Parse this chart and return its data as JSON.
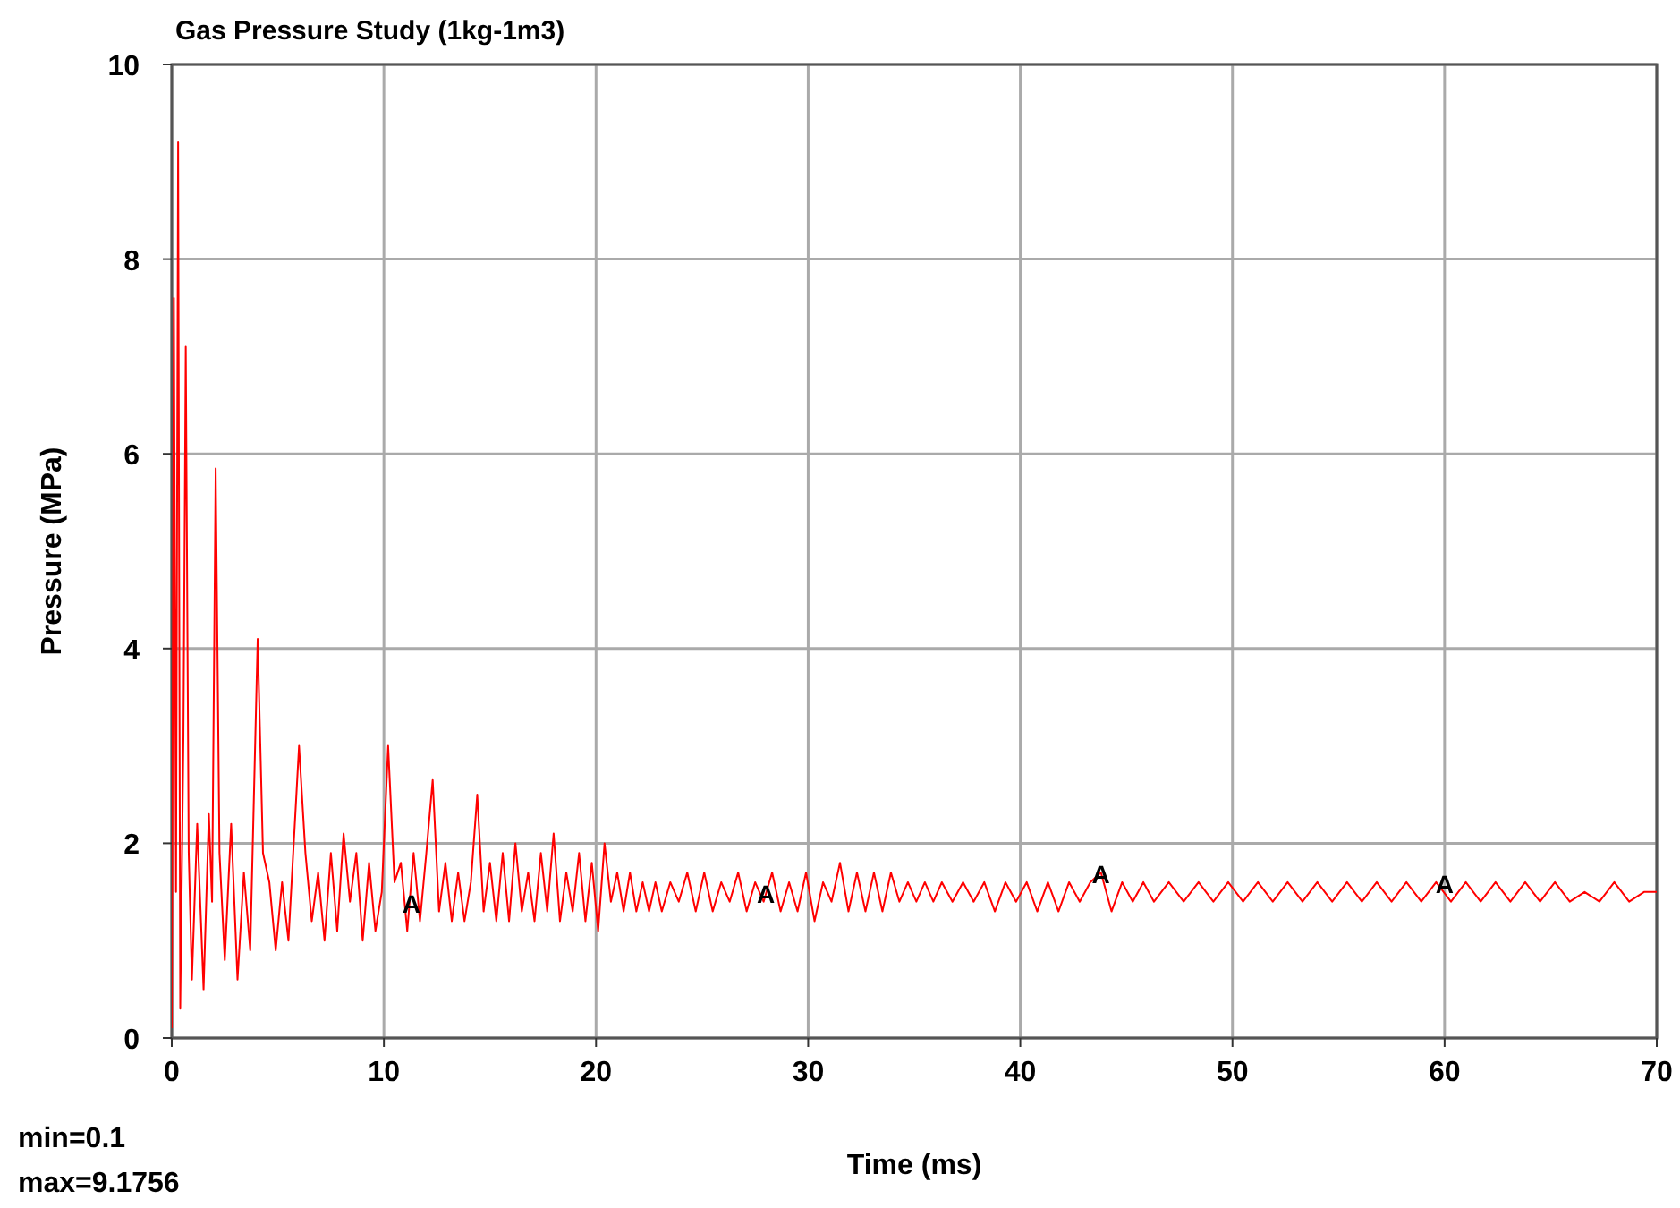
{
  "chart_data": {
    "type": "line",
    "title": "Gas Pressure Study (1kg-1m3)",
    "xlabel": "Time (ms)",
    "ylabel": "Pressure (MPa)",
    "xlim": [
      0,
      70
    ],
    "xticks": [
      0,
      10,
      20,
      30,
      40,
      50,
      60,
      70
    ],
    "ylim": [
      0,
      10
    ],
    "yticks": [
      0,
      2,
      4,
      6,
      8,
      10
    ],
    "grid": true,
    "marker": "none",
    "line_style": "solid",
    "annotations": [
      {
        "text": "A",
        "x": 11.3,
        "y": 1.4
      },
      {
        "text": "A",
        "x": 28,
        "y": 1.5
      },
      {
        "text": "A",
        "x": 43.8,
        "y": 1.7
      },
      {
        "text": "A",
        "x": 60,
        "y": 1.6
      },
      "min=0.1",
      "max=9.1756"
    ],
    "series": [
      {
        "color": "#ff0000",
        "x": [
          0,
          0.1,
          0.2,
          0.3,
          0.4,
          0.55,
          0.66,
          0.8,
          0.95,
          1.2,
          1.5,
          1.75,
          1.9,
          2.07,
          2.25,
          2.5,
          2.8,
          3.1,
          3.4,
          3.7,
          4.05,
          4.3,
          4.6,
          4.9,
          5.2,
          5.5,
          6.0,
          6.3,
          6.6,
          6.9,
          7.2,
          7.5,
          7.8,
          8.1,
          8.4,
          8.7,
          9.0,
          9.3,
          9.6,
          9.9,
          10.2,
          10.5,
          10.8,
          11.1,
          11.4,
          11.7,
          12.0,
          12.3,
          12.6,
          12.9,
          13.2,
          13.5,
          13.8,
          14.1,
          14.4,
          14.7,
          15.0,
          15.3,
          15.6,
          15.9,
          16.2,
          16.5,
          16.8,
          17.1,
          17.4,
          17.7,
          18.0,
          18.3,
          18.6,
          18.9,
          19.2,
          19.5,
          19.8,
          20.1,
          20.4,
          20.7,
          21.0,
          21.3,
          21.6,
          21.9,
          22.2,
          22.5,
          22.8,
          23.1,
          23.5,
          23.9,
          24.3,
          24.7,
          25.1,
          25.5,
          25.9,
          26.3,
          26.7,
          27.1,
          27.5,
          27.9,
          28.3,
          28.7,
          29.1,
          29.5,
          29.9,
          30.3,
          30.7,
          31.1,
          31.5,
          31.9,
          32.3,
          32.7,
          33.1,
          33.5,
          33.9,
          34.3,
          34.7,
          35.1,
          35.5,
          35.9,
          36.3,
          36.8,
          37.3,
          37.8,
          38.3,
          38.8,
          39.3,
          39.8,
          40.3,
          40.8,
          41.3,
          41.8,
          42.3,
          42.8,
          43.3,
          43.8,
          44.3,
          44.8,
          45.3,
          45.8,
          46.3,
          47,
          47.7,
          48.4,
          49.1,
          49.8,
          50.5,
          51.2,
          51.9,
          52.6,
          53.3,
          54,
          54.7,
          55.4,
          56.1,
          56.8,
          57.5,
          58.2,
          58.9,
          59.6,
          60.3,
          61,
          61.7,
          62.4,
          63.1,
          63.8,
          64.5,
          65.2,
          65.9,
          66.6,
          67.3,
          68,
          68.7,
          69.4,
          70
        ],
        "values": [
          0.1,
          7.6,
          1.5,
          9.2,
          0.3,
          3.1,
          7.1,
          1.9,
          0.6,
          2.2,
          0.5,
          2.3,
          1.4,
          5.85,
          1.9,
          0.8,
          2.2,
          0.6,
          1.7,
          0.9,
          4.1,
          1.9,
          1.6,
          0.9,
          1.6,
          1.0,
          3.0,
          1.9,
          1.2,
          1.7,
          1.0,
          1.9,
          1.1,
          2.1,
          1.4,
          1.9,
          1.0,
          1.8,
          1.1,
          1.5,
          3.0,
          1.6,
          1.8,
          1.1,
          1.9,
          1.2,
          1.9,
          2.65,
          1.3,
          1.8,
          1.2,
          1.7,
          1.2,
          1.6,
          2.5,
          1.3,
          1.8,
          1.2,
          1.9,
          1.2,
          2.0,
          1.3,
          1.7,
          1.2,
          1.9,
          1.3,
          2.1,
          1.2,
          1.7,
          1.3,
          1.9,
          1.2,
          1.8,
          1.1,
          2.0,
          1.4,
          1.7,
          1.3,
          1.7,
          1.3,
          1.6,
          1.3,
          1.6,
          1.3,
          1.6,
          1.4,
          1.7,
          1.3,
          1.7,
          1.3,
          1.6,
          1.4,
          1.7,
          1.3,
          1.6,
          1.4,
          1.7,
          1.3,
          1.6,
          1.3,
          1.7,
          1.2,
          1.6,
          1.4,
          1.8,
          1.3,
          1.7,
          1.3,
          1.7,
          1.3,
          1.7,
          1.4,
          1.6,
          1.4,
          1.6,
          1.4,
          1.6,
          1.4,
          1.6,
          1.4,
          1.6,
          1.3,
          1.6,
          1.4,
          1.6,
          1.3,
          1.6,
          1.3,
          1.6,
          1.4,
          1.6,
          1.7,
          1.3,
          1.6,
          1.4,
          1.6,
          1.4,
          1.6,
          1.4,
          1.6,
          1.4,
          1.6,
          1.4,
          1.6,
          1.4,
          1.6,
          1.4,
          1.6,
          1.4,
          1.6,
          1.4,
          1.6,
          1.4,
          1.6,
          1.4,
          1.6,
          1.4,
          1.6,
          1.4,
          1.6,
          1.4,
          1.6,
          1.4,
          1.6,
          1.4,
          1.5,
          1.4,
          1.6,
          1.4,
          1.5,
          1.5
        ]
      }
    ]
  }
}
